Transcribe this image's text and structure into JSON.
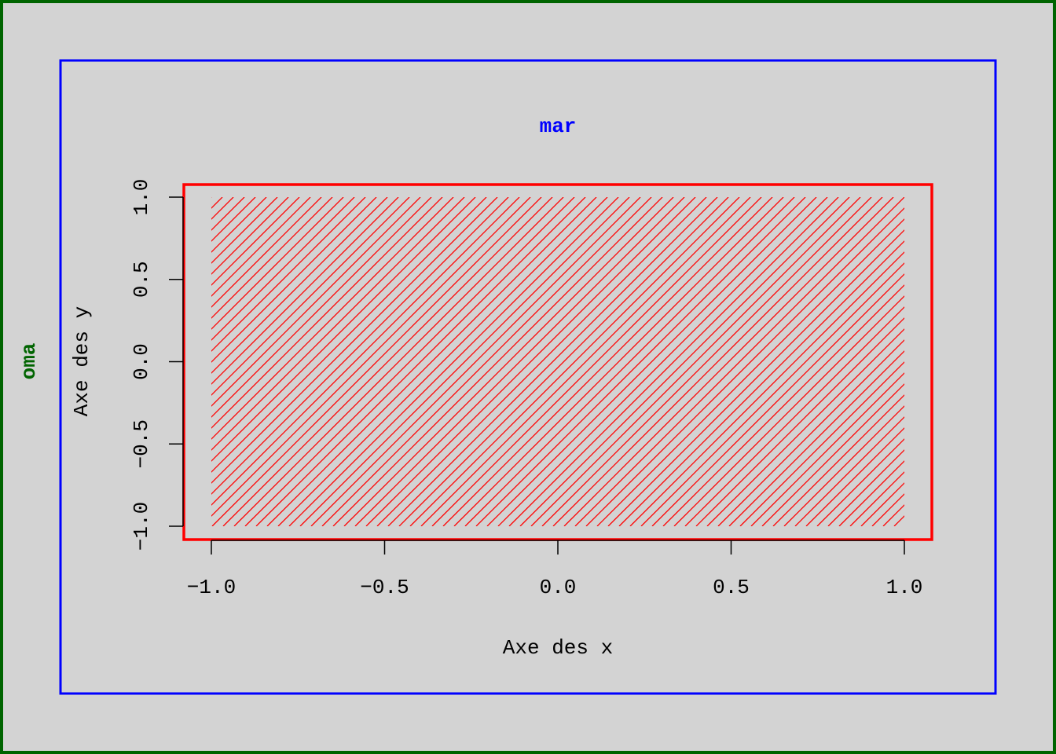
{
  "chart_data": {
    "type": "area",
    "title": "mar",
    "outer_label": "oma",
    "xlabel": "Axe des x",
    "ylabel": "Axe des y",
    "xlim": [
      -1.0,
      1.0
    ],
    "ylim": [
      -1.0,
      1.0
    ],
    "x_ticks": [
      {
        "value": -1.0,
        "label": "−1.0"
      },
      {
        "value": -0.5,
        "label": "−0.5"
      },
      {
        "value": 0.0,
        "label": "0.0"
      },
      {
        "value": 0.5,
        "label": "0.5"
      },
      {
        "value": 1.0,
        "label": "1.0"
      }
    ],
    "y_ticks": [
      {
        "value": -1.0,
        "label": "−1.0"
      },
      {
        "value": -0.5,
        "label": "−0.5"
      },
      {
        "value": 0.0,
        "label": "0.0"
      },
      {
        "value": 0.5,
        "label": "0.5"
      },
      {
        "value": 1.0,
        "label": "1.0"
      }
    ],
    "hatched_region": {
      "x": [
        -1.0,
        1.0
      ],
      "y": [
        -1.0,
        1.0
      ],
      "pattern": "diagonal-lines",
      "angle_deg": 45
    },
    "grid": false,
    "colors": {
      "background": "#d3d3d3",
      "outer_frame": "#006400",
      "figure_frame": "#0000ff",
      "plot_frame": "#ff0000",
      "hatch": "#ff0000",
      "title": "#0000ff",
      "outer_label": "#006400",
      "axis_text": "#000000"
    }
  }
}
